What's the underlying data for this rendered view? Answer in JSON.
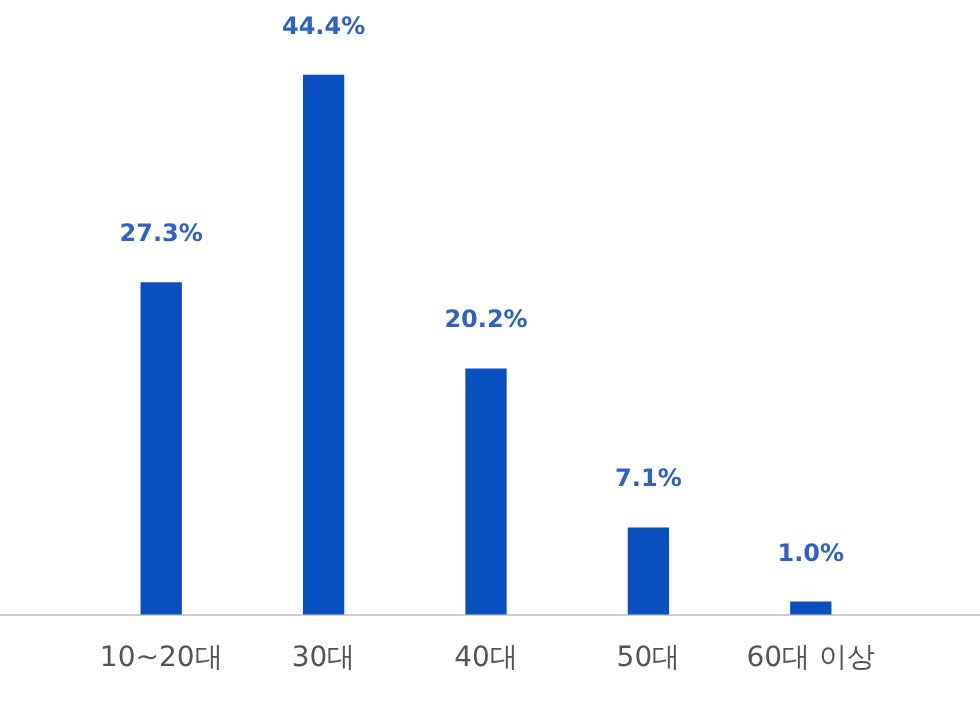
{
  "chart_data": {
    "type": "bar",
    "categories": [
      "10~20대",
      "30대",
      "40대",
      "50대",
      "60대 이상"
    ],
    "values": [
      27.3,
      44.4,
      20.2,
      7.1,
      1.0
    ],
    "color": "#0a4fbf",
    "value_labels": [
      "27.3%",
      "44.4%",
      "20.2%",
      "7.1%",
      "1.0%"
    ],
    "grid": false,
    "legend": false,
    "tick_labels": "x"
  }
}
